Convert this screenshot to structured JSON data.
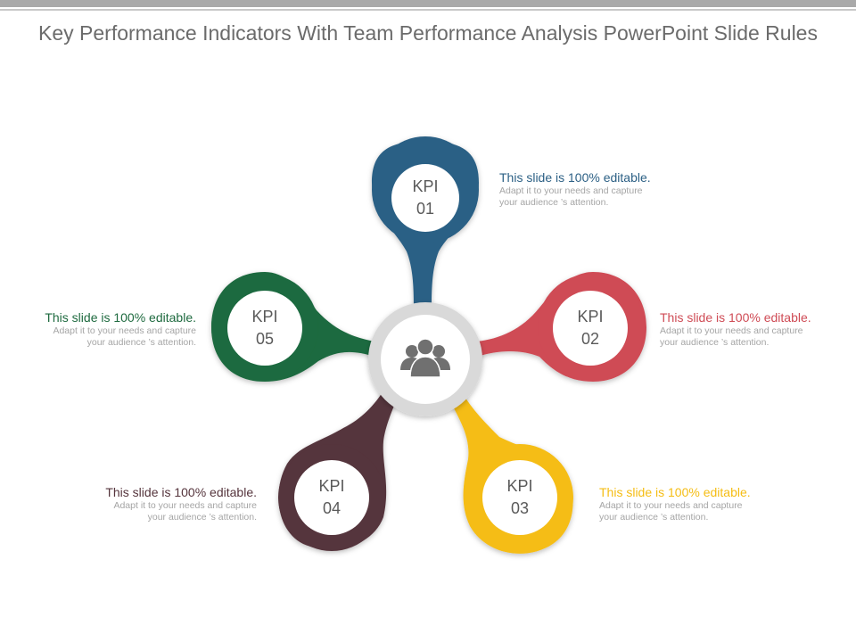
{
  "title": "Key Performance Indicators With Team Performance Analysis PowerPoint Slide Rules",
  "center": {
    "icon": "team-people-icon",
    "color": "#d9d9d9"
  },
  "kpis": [
    {
      "label": "KPI",
      "number": "01",
      "color": "#2c6085",
      "heading": "This slide is 100% editable.",
      "body_line1": "Adapt it to your needs and capture",
      "body_line2": "your  audience ’s attention."
    },
    {
      "label": "KPI",
      "number": "02",
      "color": "#cf4b55",
      "heading": "This slide is 100% editable.",
      "body_line1": "Adapt it to your needs and capture",
      "body_line2": "your  audience ’s attention."
    },
    {
      "label": "KPI",
      "number": "03",
      "color": "#f5bd14",
      "heading": "This slide is 100% editable.",
      "body_line1": "Adapt it to your needs and capture",
      "body_line2": "your  audience ’s attention."
    },
    {
      "label": "KPI",
      "number": "04",
      "color": "#55343c",
      "heading": "This slide is 100% editable.",
      "body_line1": "Adapt it to your needs and capture",
      "body_line2": "your  audience ’s attention."
    },
    {
      "label": "KPI",
      "number": "05",
      "color": "#1e6a3f",
      "heading": "This slide is 100% editable.",
      "body_line1": "Adapt it to your needs and capture",
      "body_line2": "your  audience ’s attention."
    }
  ]
}
